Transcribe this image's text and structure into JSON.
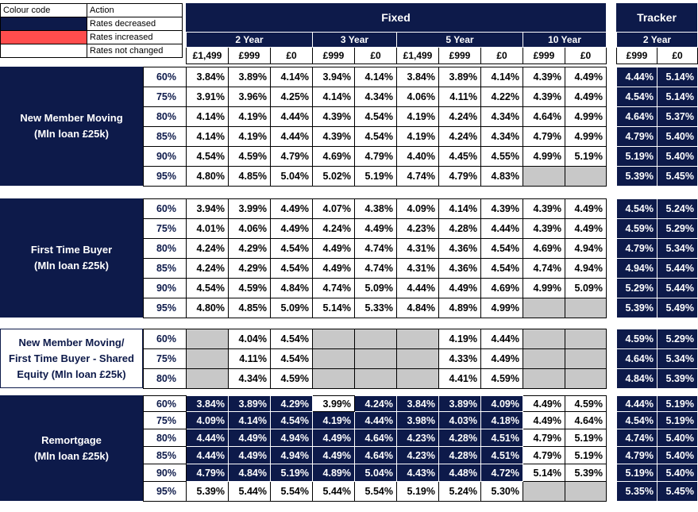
{
  "legend": {
    "col_colour": "Colour code",
    "col_action": "Action",
    "items": [
      {
        "label": "Rates decreased",
        "color": "#0d1a4a"
      },
      {
        "label": "Rates increased",
        "color": "#ff4d4d"
      },
      {
        "label": "Rates not changed",
        "color": "#ffffff"
      }
    ]
  },
  "header": {
    "fixed": "Fixed",
    "tracker": "Tracker",
    "terms": [
      "2 Year",
      "3 Year",
      "5 Year",
      "10 Year"
    ],
    "tracker_term": "2 Year",
    "fees_fixed": [
      "£1,499",
      "£999",
      "£0",
      "£999",
      "£0",
      "£1,499",
      "£999",
      "£0",
      "£999",
      "£0"
    ],
    "fees_tracker": [
      "£999",
      "£0"
    ]
  },
  "sections": [
    {
      "label": "New Member Moving\n(Mln loan £25k)",
      "rows": [
        {
          "ltv": "60%",
          "fixed": [
            "3.84%",
            "3.89%",
            "4.14%",
            "3.94%",
            "4.14%",
            "3.84%",
            "3.89%",
            "4.14%",
            "4.39%",
            "4.49%"
          ],
          "tracker": [
            "4.44%",
            "5.14%"
          ]
        },
        {
          "ltv": "75%",
          "fixed": [
            "3.91%",
            "3.96%",
            "4.25%",
            "4.14%",
            "4.34%",
            "4.06%",
            "4.11%",
            "4.22%",
            "4.39%",
            "4.49%"
          ],
          "tracker": [
            "4.54%",
            "5.14%"
          ]
        },
        {
          "ltv": "80%",
          "fixed": [
            "4.14%",
            "4.19%",
            "4.44%",
            "4.39%",
            "4.54%",
            "4.19%",
            "4.24%",
            "4.34%",
            "4.64%",
            "4.99%"
          ],
          "tracker": [
            "4.64%",
            "5.37%"
          ]
        },
        {
          "ltv": "85%",
          "fixed": [
            "4.14%",
            "4.19%",
            "4.44%",
            "4.39%",
            "4.54%",
            "4.19%",
            "4.24%",
            "4.34%",
            "4.79%",
            "4.99%"
          ],
          "tracker": [
            "4.79%",
            "5.40%"
          ]
        },
        {
          "ltv": "90%",
          "fixed": [
            "4.54%",
            "4.59%",
            "4.79%",
            "4.69%",
            "4.79%",
            "4.40%",
            "4.45%",
            "4.55%",
            "4.99%",
            "5.19%"
          ],
          "tracker": [
            "5.19%",
            "5.40%"
          ]
        },
        {
          "ltv": "95%",
          "fixed": [
            "4.80%",
            "4.85%",
            "5.04%",
            "5.02%",
            "5.19%",
            "4.74%",
            "4.79%",
            "4.83%",
            "",
            ""
          ],
          "tracker": [
            "5.39%",
            "5.45%"
          ]
        }
      ]
    },
    {
      "label": "First Time Buyer\n(Mln loan £25k)",
      "rows": [
        {
          "ltv": "60%",
          "fixed": [
            "3.94%",
            "3.99%",
            "4.49%",
            "4.07%",
            "4.38%",
            "4.09%",
            "4.14%",
            "4.39%",
            "4.39%",
            "4.49%"
          ],
          "tracker": [
            "4.54%",
            "5.24%"
          ]
        },
        {
          "ltv": "75%",
          "fixed": [
            "4.01%",
            "4.06%",
            "4.49%",
            "4.24%",
            "4.49%",
            "4.23%",
            "4.28%",
            "4.44%",
            "4.39%",
            "4.49%"
          ],
          "tracker": [
            "4.59%",
            "5.29%"
          ]
        },
        {
          "ltv": "80%",
          "fixed": [
            "4.24%",
            "4.29%",
            "4.54%",
            "4.49%",
            "4.74%",
            "4.31%",
            "4.36%",
            "4.54%",
            "4.69%",
            "4.94%"
          ],
          "tracker": [
            "4.79%",
            "5.34%"
          ]
        },
        {
          "ltv": "85%",
          "fixed": [
            "4.24%",
            "4.29%",
            "4.54%",
            "4.49%",
            "4.74%",
            "4.31%",
            "4.36%",
            "4.54%",
            "4.74%",
            "4.94%"
          ],
          "tracker": [
            "4.94%",
            "5.44%"
          ]
        },
        {
          "ltv": "90%",
          "fixed": [
            "4.54%",
            "4.59%",
            "4.84%",
            "4.74%",
            "5.09%",
            "4.44%",
            "4.49%",
            "4.69%",
            "4.99%",
            "5.09%"
          ],
          "tracker": [
            "5.29%",
            "5.44%"
          ]
        },
        {
          "ltv": "95%",
          "fixed": [
            "4.80%",
            "4.85%",
            "5.09%",
            "5.14%",
            "5.33%",
            "4.84%",
            "4.89%",
            "4.99%",
            "",
            ""
          ],
          "tracker": [
            "5.39%",
            "5.49%"
          ]
        }
      ]
    },
    {
      "label": "New Member Moving/\nFirst Time Buyer - Shared\nEquity (Mln loan £25k)",
      "rows": [
        {
          "ltv": "60%",
          "fixed": [
            "",
            "4.04%",
            "4.54%",
            "",
            "",
            "",
            "4.19%",
            "4.44%",
            "",
            ""
          ],
          "tracker": [
            "4.59%",
            "5.29%"
          ]
        },
        {
          "ltv": "75%",
          "fixed": [
            "",
            "4.11%",
            "4.54%",
            "",
            "",
            "",
            "4.33%",
            "4.49%",
            "",
            ""
          ],
          "tracker": [
            "4.64%",
            "5.34%"
          ]
        },
        {
          "ltv": "80%",
          "fixed": [
            "",
            "4.34%",
            "4.59%",
            "",
            "",
            "",
            "4.41%",
            "4.59%",
            "",
            ""
          ],
          "tracker": [
            "4.84%",
            "5.39%"
          ]
        }
      ]
    },
    {
      "label": "Remortgage\n(Mln loan £25k)",
      "rows": [
        {
          "ltv": "60%",
          "fixed": [
            "3.84%",
            "3.89%",
            "4.29%",
            "3.99%",
            "4.24%",
            "3.84%",
            "3.89%",
            "4.09%",
            "4.49%",
            "4.59%"
          ],
          "tracker": [
            "4.44%",
            "5.19%"
          ]
        },
        {
          "ltv": "75%",
          "fixed": [
            "4.09%",
            "4.14%",
            "4.54%",
            "4.19%",
            "4.44%",
            "3.98%",
            "4.03%",
            "4.18%",
            "4.49%",
            "4.64%"
          ],
          "tracker": [
            "4.54%",
            "5.19%"
          ]
        },
        {
          "ltv": "80%",
          "fixed": [
            "4.44%",
            "4.49%",
            "4.94%",
            "4.49%",
            "4.64%",
            "4.23%",
            "4.28%",
            "4.51%",
            "4.79%",
            "5.19%"
          ],
          "tracker": [
            "4.74%",
            "5.40%"
          ]
        },
        {
          "ltv": "85%",
          "fixed": [
            "4.44%",
            "4.49%",
            "4.94%",
            "4.49%",
            "4.64%",
            "4.23%",
            "4.28%",
            "4.51%",
            "4.79%",
            "5.19%"
          ],
          "tracker": [
            "4.79%",
            "5.40%"
          ]
        },
        {
          "ltv": "90%",
          "fixed": [
            "4.79%",
            "4.84%",
            "5.19%",
            "4.89%",
            "5.04%",
            "4.43%",
            "4.48%",
            "4.72%",
            "5.14%",
            "5.39%"
          ],
          "tracker": [
            "5.19%",
            "5.40%"
          ]
        },
        {
          "ltv": "95%",
          "fixed": [
            "5.39%",
            "5.44%",
            "5.54%",
            "5.44%",
            "5.54%",
            "5.19%",
            "5.24%",
            "5.30%",
            "",
            ""
          ],
          "tracker": [
            "5.35%",
            "5.45%"
          ]
        }
      ]
    }
  ]
}
